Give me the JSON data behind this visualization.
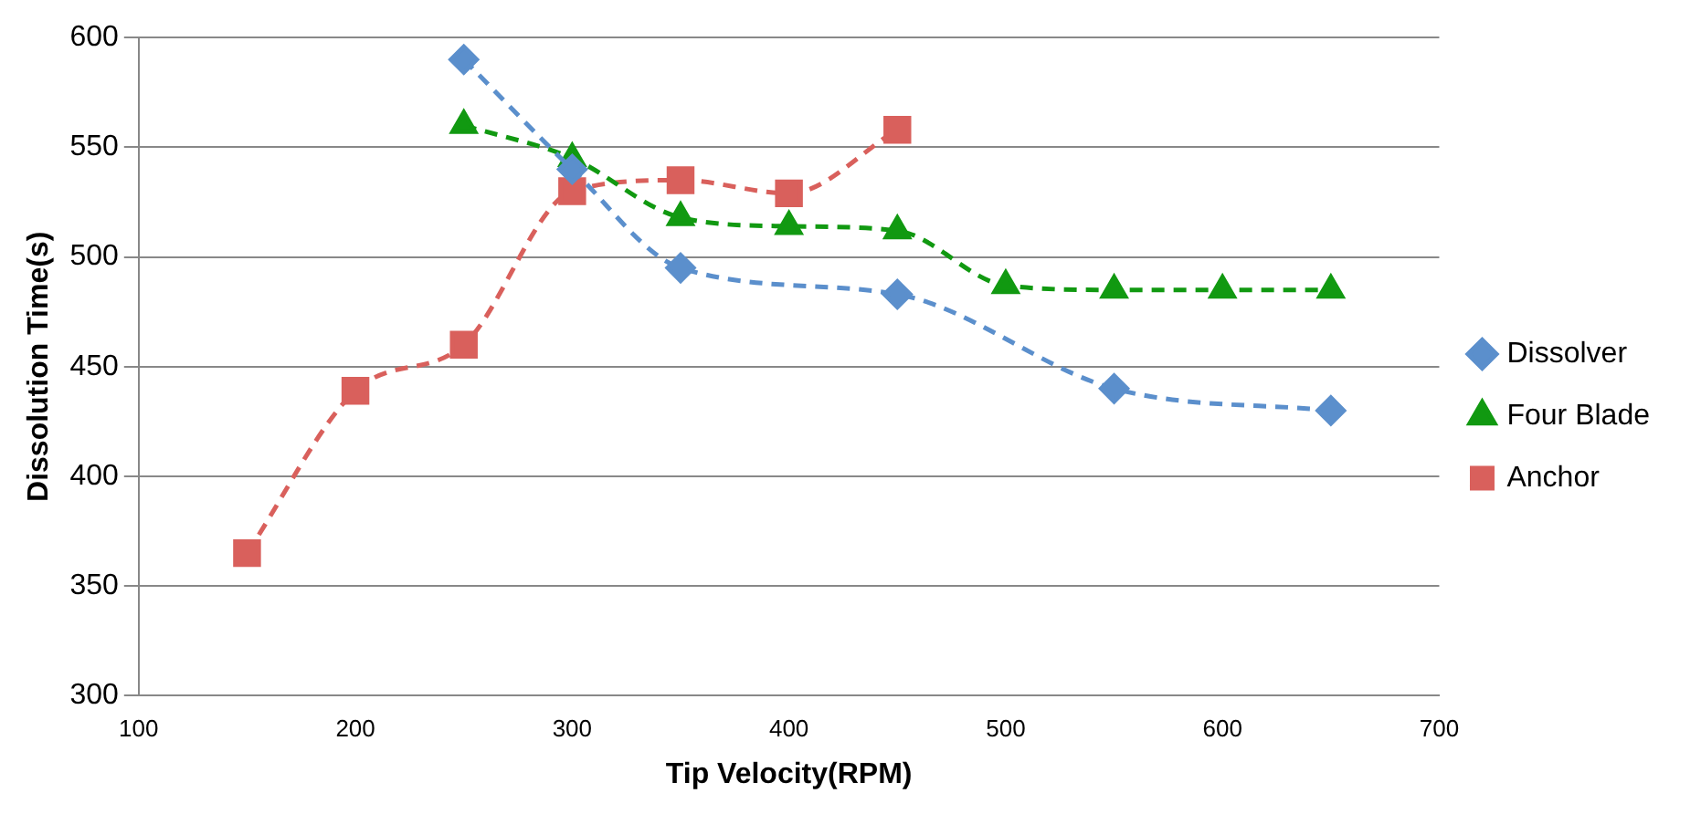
{
  "chart_data": {
    "type": "line",
    "xlabel": "Tip Velocity(RPM)",
    "ylabel": "Dissolution Time(s)",
    "xlim": [
      100,
      700
    ],
    "xticks": [
      100,
      200,
      300,
      400,
      500,
      600,
      700
    ],
    "ylim": [
      300,
      600
    ],
    "yticks": [
      300,
      350,
      400,
      450,
      500,
      550,
      600
    ],
    "grid": "y",
    "legend": "right",
    "line_style": "dashed",
    "series": [
      {
        "name": "Dissolver",
        "color": "#5b8fcc",
        "marker": "diamond",
        "x": [
          250,
          300,
          350,
          450,
          550,
          650
        ],
        "values": [
          590,
          540,
          495,
          483,
          440,
          430
        ]
      },
      {
        "name": "Four Blade",
        "color": "#119911",
        "marker": "triangle",
        "x": [
          250,
          300,
          350,
          400,
          450,
          500,
          550,
          600,
          650
        ],
        "values": [
          560,
          545,
          518,
          514,
          512,
          487,
          485,
          485,
          485
        ]
      },
      {
        "name": "Anchor",
        "color": "#d9605c",
        "marker": "square",
        "x": [
          150,
          200,
          250,
          300,
          350,
          400,
          450
        ],
        "values": [
          365,
          439,
          460,
          530,
          535,
          529,
          558
        ]
      }
    ]
  }
}
